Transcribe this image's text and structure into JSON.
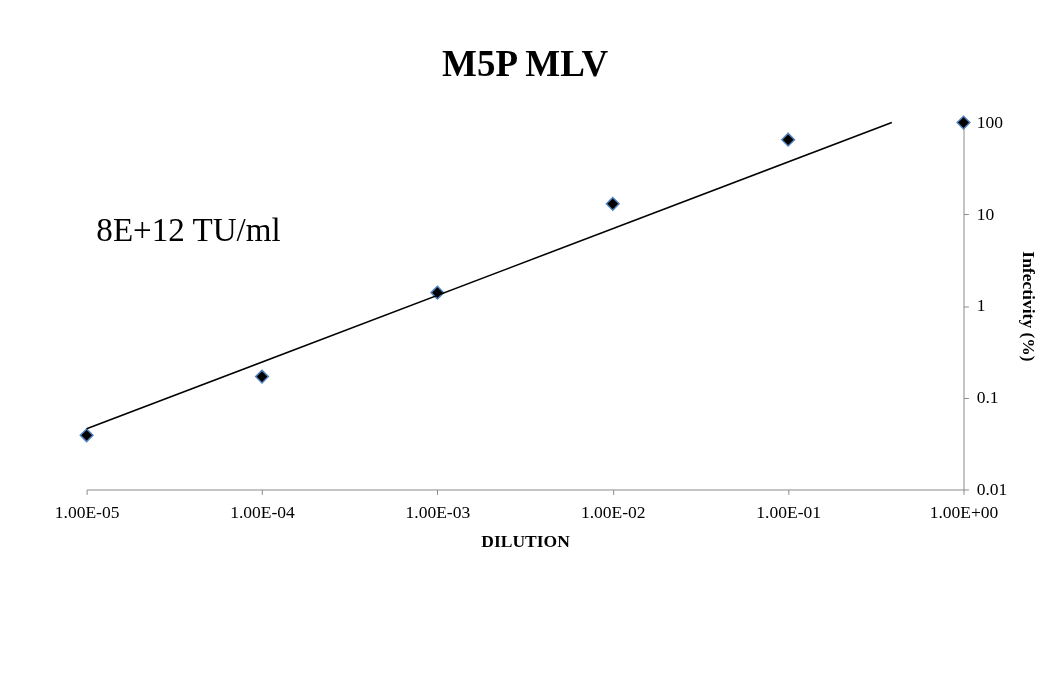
{
  "chart_data": {
    "type": "scatter",
    "title": "M5P MLV",
    "xlabel": "DILUTION",
    "ylabel": "Infectivity (%)",
    "annotations": [
      "8E+12 TU/ml"
    ],
    "log": "xy",
    "marker": "diamond",
    "xlim": [
      1e-05,
      1
    ],
    "ylim": [
      0.01,
      100
    ],
    "xticks": [
      {
        "value": 1e-05,
        "label": "1.00E-05"
      },
      {
        "value": 0.0001,
        "label": "1.00E-04"
      },
      {
        "value": 0.001,
        "label": "1.00E-03"
      },
      {
        "value": 0.01,
        "label": "1.00E-02"
      },
      {
        "value": 0.1,
        "label": "1.00E-01"
      },
      {
        "value": 1,
        "label": "1.00E+00"
      }
    ],
    "yticks": [
      0.01,
      0.1,
      1,
      10,
      100
    ],
    "series": [
      {
        "color": "#000000",
        "x": [
          1e-05,
          0.0001,
          0.001,
          0.01,
          0.1,
          1
        ],
        "values": [
          0.039,
          0.17,
          1.4,
          13,
          65,
          100
        ],
        "errors": [
          0.004,
          null,
          null,
          null,
          null,
          null
        ]
      },
      {
        "type": "line",
        "color": "#000000",
        "marker": "none",
        "line_style": "solid",
        "x": [
          1e-05,
          0.39
        ],
        "values": [
          0.046,
          100
        ]
      }
    ]
  }
}
